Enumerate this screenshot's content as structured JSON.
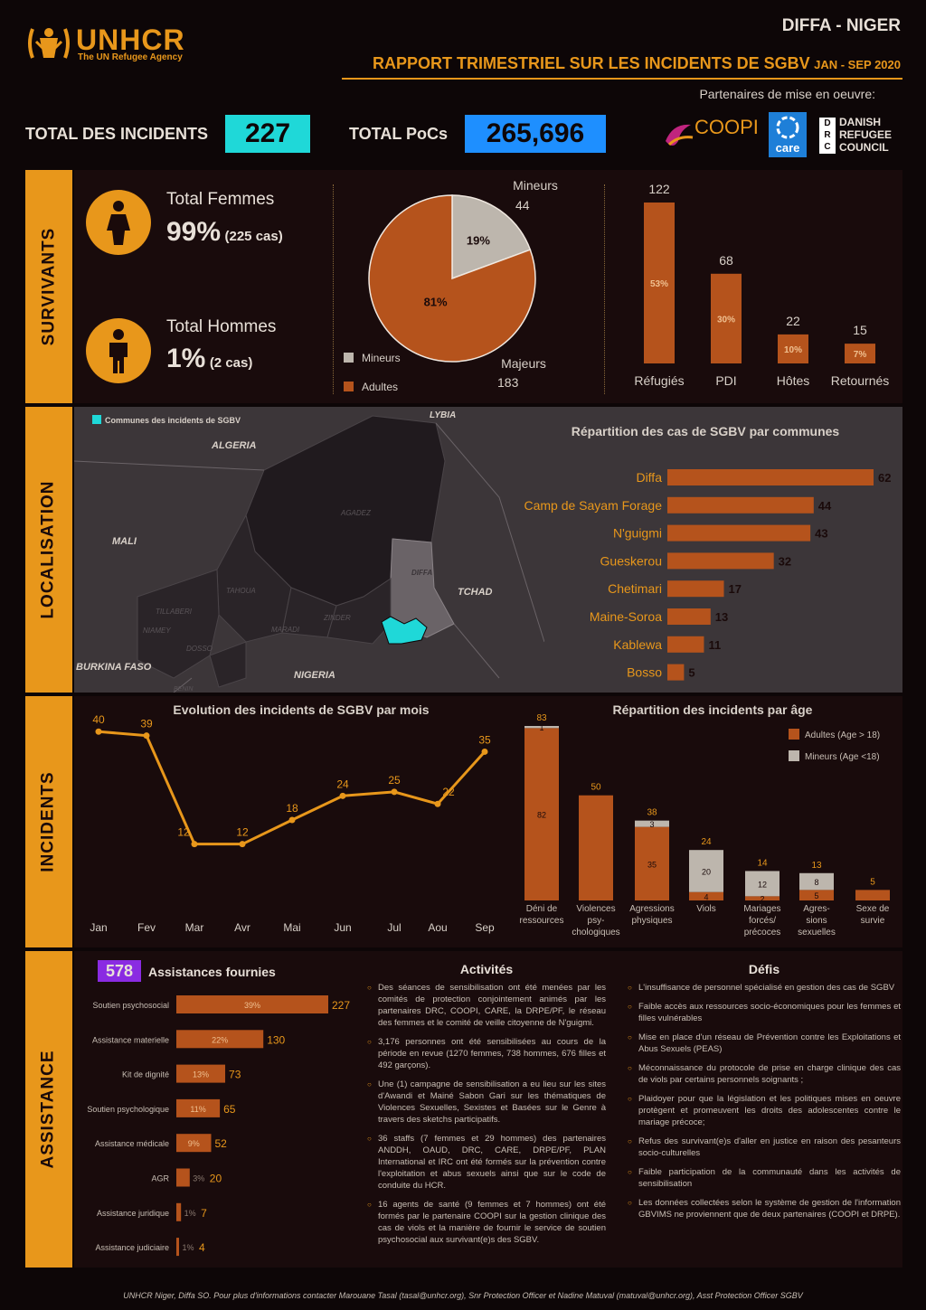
{
  "header": {
    "org": "UNHCR",
    "org_sub": "The UN Refugee Agency",
    "location": "DIFFA - NIGER",
    "title": "RAPPORT TRIMESTRIEL SUR LES INCIDENTS DE SGBV",
    "period": "JAN - SEP 2020",
    "partners_label": "Partenaires de mise en oeuvre:",
    "partners": [
      "COOPI",
      "care",
      "DANISH REFUGEE COUNCIL"
    ]
  },
  "totals": {
    "incidents_label": "TOTAL DES INCIDENTS",
    "incidents_value": "227",
    "pocs_label": "TOTAL PoCs",
    "pocs_value": "265,696"
  },
  "sections": {
    "survivants": "SURVIVANTS",
    "localisation": "LOCALISATION",
    "incidents": "INCIDENTS",
    "assistance": "ASSISTANCE"
  },
  "survivants": {
    "femmes_label": "Total Femmes",
    "femmes_pct": "99%",
    "femmes_cases": "(225 cas)",
    "hommes_label": "Total Hommes",
    "hommes_pct": "1%",
    "hommes_cases": "(2 cas)"
  },
  "colors": {
    "accent": "#e8971b",
    "brown": "#b5531c",
    "grey": "#bdb6ad",
    "cyan": "#1fd8d8",
    "blue": "#1e8fff"
  },
  "map": {
    "legend": "Communes des incidents de SGBV",
    "labels": [
      "LYBIA",
      "ALGERIA",
      "MALI",
      "TCHAD",
      "BURKINA FASO",
      "NIGERIA",
      "AGADEZ",
      "DIFFA",
      "TAHOUA",
      "TILLABERI",
      "NIAMEY",
      "DOSSO",
      "MARADI",
      "ZINDER",
      "BENIN"
    ]
  },
  "chart_data": [
    {
      "type": "pie",
      "labels": [
        "Mineurs",
        "Majeurs"
      ],
      "values": [
        44,
        183
      ],
      "percent_labels": [
        "19%",
        "81%"
      ],
      "legend": [
        "Mineurs",
        "Adultes"
      ],
      "colors": [
        "#bdb6ad",
        "#b5531c"
      ]
    },
    {
      "type": "bar",
      "categories": [
        "Réfugiés",
        "PDI",
        "Hôtes",
        "Retournés"
      ],
      "values": [
        122,
        68,
        22,
        15
      ],
      "percent_labels": [
        "53%",
        "30%",
        "10%",
        "7%"
      ],
      "ylim": [
        0,
        122
      ]
    },
    {
      "type": "bar",
      "orientation": "horizontal",
      "title": "Répartition des cas de SGBV par communes",
      "categories": [
        "Diffa",
        "Camp de Sayam Forage",
        "N'guigmi",
        "Gueskerou",
        "Chetimari",
        "Maine-Soroa",
        "Kablewa",
        "Bosso"
      ],
      "values": [
        62,
        44,
        43,
        32,
        17,
        13,
        11,
        5
      ]
    },
    {
      "type": "line",
      "title": "Evolution des incidents de SGBV par mois",
      "x": [
        "Jan",
        "Fev",
        "Mar",
        "Avr",
        "Mai",
        "Jun",
        "Jul",
        "Aou",
        "Sep"
      ],
      "values": [
        40,
        39,
        12,
        12,
        18,
        24,
        25,
        22,
        35
      ],
      "ylim": [
        0,
        45
      ]
    },
    {
      "type": "bar",
      "stacked": true,
      "title": "Répartition des incidents par âge",
      "categories": [
        "Déni de ressources",
        "Violences psy-chologiques",
        "Agressions physiques",
        "Viols",
        "Mariages forcés/ précoces",
        "Agres-sions sexuelles",
        "Sexe de survie"
      ],
      "totals": [
        83,
        50,
        38,
        24,
        14,
        13,
        5
      ],
      "series": [
        {
          "name": "Adultes (Age > 18)",
          "values": [
            82,
            50,
            35,
            4,
            2,
            5,
            5
          ]
        },
        {
          "name": "Mineurs (Age <18)",
          "values": [
            1,
            0,
            3,
            20,
            12,
            8,
            0
          ]
        }
      ]
    },
    {
      "type": "bar",
      "orientation": "horizontal",
      "title": "Assistances fournies",
      "total": "578",
      "categories": [
        "Soutien psychosocial",
        "Assistance materielle",
        "Kit de dignité",
        "Soutien psychologique",
        "Assistance médicale",
        "AGR",
        "Assistance juridique",
        "Assistance judiciaire"
      ],
      "values": [
        227,
        130,
        73,
        65,
        52,
        20,
        7,
        4
      ],
      "percent_labels": [
        "39%",
        "22%",
        "13%",
        "11%",
        "9%",
        "3%",
        "1%",
        "1%"
      ]
    }
  ],
  "activites": {
    "title": "Activités",
    "items": [
      "Des séances de sensibilisation ont été menées par les comités de protection conjointement animés par les partenaires DRC, COOPI, CARE, la DRPE/PF, le réseau des femmes et le comité de veille citoyenne de N'guigmi.",
      "3,176 personnes ont été sensibilisées au cours de la période en revue (1270 femmes, 738 hommes, 676 filles et 492 garçons).",
      "Une (1) campagne de sensibilisation a eu lieu sur les sites d'Awandi et Mainé Sabon Gari sur les thématiques de Violences Sexuelles, Sexistes et Basées sur le Genre à travers des sketchs participatifs.",
      "36 staffs (7 femmes et 29 hommes) des partenaires ANDDH, OAUD, DRC, CARE, DRPE/PF, PLAN International et IRC ont été formés sur la prévention contre l'exploitation et abus sexuels ainsi que sur le code de conduite du HCR.",
      "16 agents de santé (9 femmes et 7 hommes) ont été formés par le partenaire COOPI sur la gestion clinique des cas de viols et la manière de fournir le service de soutien psychosocial aux survivant(e)s des SGBV."
    ]
  },
  "defis": {
    "title": "Défis",
    "items": [
      "L'insuffisance de personnel spécialisé en gestion des cas de SGBV",
      "Faible accès aux ressources socio-économiques pour les femmes et filles vulnérables",
      "Mise en place d'un réseau de Prévention contre les Exploitations et Abus Sexuels (PEAS)",
      "Méconnaissance du protocole de prise en charge clinique des cas de viols par certains personnels soignants ;",
      "Plaidoyer pour que la législation et les politiques mises en oeuvre protègent et promeuvent les droits des adolescentes contre le mariage précoce;",
      "Refus des survivant(e)s d'aller en justice en raison des pesanteurs socio-culturelles",
      "Faible participation de la communauté dans les activités de sensibilisation",
      "Les données collectées selon le système de gestion de l'information GBVIMS ne proviennent que de deux partenaires (COOPI et DRPE)."
    ]
  },
  "footer": "UNHCR Niger, Diffa SO. Pour plus d'informations contacter Marouane Tasal (tasal@unhcr.org), Snr Protection Officer et Nadine Matuval (matuval@unhcr.org), Asst Protection Officer SGBV"
}
